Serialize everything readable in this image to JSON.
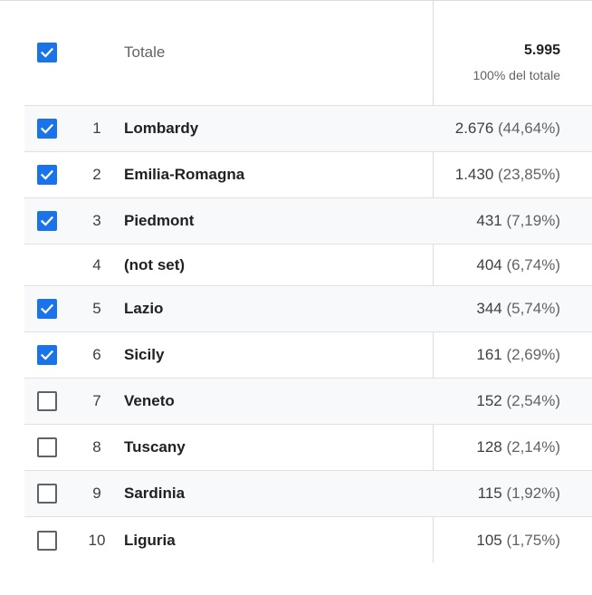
{
  "header": {
    "label": "Totale",
    "total_value": "5.995",
    "total_sub": "100% del totale",
    "checked": true
  },
  "rows": [
    {
      "index": "1",
      "name": "Lombardy",
      "value": "2.676",
      "pct": "(44,64%)",
      "checkbox": "checked"
    },
    {
      "index": "2",
      "name": "Emilia-Romagna",
      "value": "1.430",
      "pct": "(23,85%)",
      "checkbox": "checked"
    },
    {
      "index": "3",
      "name": "Piedmont",
      "value": "431",
      "pct": "(7,19%)",
      "checkbox": "checked"
    },
    {
      "index": "4",
      "name": "(not set)",
      "value": "404",
      "pct": "(6,74%)",
      "checkbox": "none"
    },
    {
      "index": "5",
      "name": "Lazio",
      "value": "344",
      "pct": "(5,74%)",
      "checkbox": "checked"
    },
    {
      "index": "6",
      "name": "Sicily",
      "value": "161",
      "pct": "(2,69%)",
      "checkbox": "checked"
    },
    {
      "index": "7",
      "name": "Veneto",
      "value": "152",
      "pct": "(2,54%)",
      "checkbox": "unchecked"
    },
    {
      "index": "8",
      "name": "Tuscany",
      "value": "128",
      "pct": "(2,14%)",
      "checkbox": "unchecked"
    },
    {
      "index": "9",
      "name": "Sardinia",
      "value": "115",
      "pct": "(1,92%)",
      "checkbox": "unchecked"
    },
    {
      "index": "10",
      "name": "Liguria",
      "value": "105",
      "pct": "(1,75%)",
      "checkbox": "unchecked"
    }
  ],
  "colors": {
    "accent": "#1a73e8",
    "row_alt": "#f8f9fa",
    "divider": "#e0e0e0"
  }
}
